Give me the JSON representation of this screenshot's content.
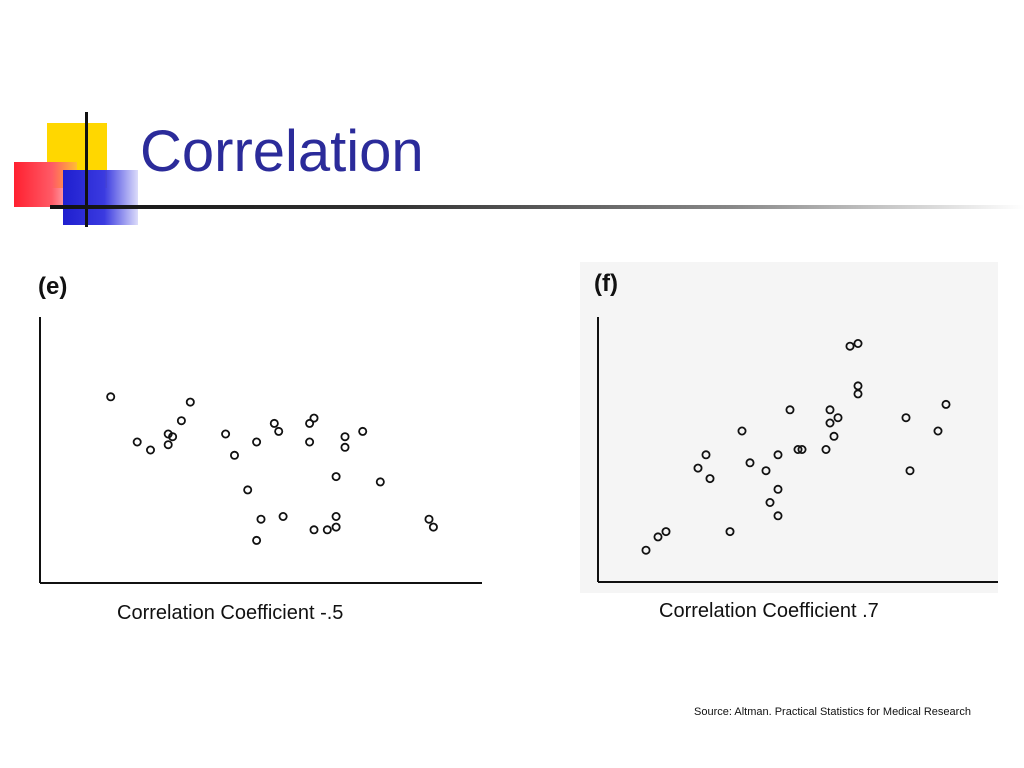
{
  "slide": {
    "title": "Correlation",
    "source": "Source: Altman. Practical Statistics for Medical Research",
    "colors": {
      "title": "#2b2b9a",
      "logo_yellow": "#ffd700",
      "logo_red": "#ff2030",
      "logo_blue": "#1f1fcf"
    }
  },
  "panels": [
    {
      "label": "(e)",
      "caption": "Correlation Coefficient -.5"
    },
    {
      "label": "(f)",
      "caption": "Correlation Coefficient .7"
    }
  ],
  "chart_data": [
    {
      "type": "scatter",
      "title": "",
      "xlabel": "",
      "ylabel": "",
      "xlim": [
        0,
        100
      ],
      "ylim": [
        0,
        100
      ],
      "grid": false,
      "correlation": -0.5,
      "points": [
        [
          16,
          70
        ],
        [
          22,
          53
        ],
        [
          25,
          50
        ],
        [
          29,
          52
        ],
        [
          30,
          55
        ],
        [
          32,
          61
        ],
        [
          34,
          68
        ],
        [
          42,
          56
        ],
        [
          44,
          48
        ],
        [
          47,
          35
        ],
        [
          49,
          16
        ],
        [
          49,
          53
        ],
        [
          50,
          24
        ],
        [
          53,
          60
        ],
        [
          54,
          57
        ],
        [
          55,
          25
        ],
        [
          61,
          53
        ],
        [
          61,
          60
        ],
        [
          62,
          20
        ],
        [
          62,
          62
        ],
        [
          65,
          20
        ],
        [
          67,
          40
        ],
        [
          67,
          25
        ],
        [
          67,
          21
        ],
        [
          69,
          55
        ],
        [
          69,
          51
        ],
        [
          73,
          57
        ],
        [
          77,
          38
        ],
        [
          88,
          24
        ],
        [
          89,
          21
        ],
        [
          29,
          56
        ]
      ]
    },
    {
      "type": "scatter",
      "title": "",
      "xlabel": "",
      "ylabel": "",
      "xlim": [
        0,
        100
      ],
      "ylim": [
        0,
        100
      ],
      "grid": false,
      "correlation": 0.7,
      "points": [
        [
          12,
          12
        ],
        [
          15,
          17
        ],
        [
          17,
          19
        ],
        [
          25,
          43
        ],
        [
          27,
          48
        ],
        [
          28,
          39
        ],
        [
          33,
          19
        ],
        [
          36,
          57
        ],
        [
          38,
          45
        ],
        [
          42,
          42
        ],
        [
          43,
          30
        ],
        [
          45,
          48
        ],
        [
          45,
          35
        ],
        [
          45,
          25
        ],
        [
          48,
          65
        ],
        [
          50,
          50
        ],
        [
          51,
          50
        ],
        [
          57,
          50
        ],
        [
          58,
          60
        ],
        [
          58,
          65
        ],
        [
          59,
          55
        ],
        [
          60,
          62
        ],
        [
          63,
          89
        ],
        [
          65,
          90
        ],
        [
          65,
          71
        ],
        [
          65,
          74
        ],
        [
          77,
          62
        ],
        [
          78,
          42
        ],
        [
          85,
          57
        ],
        [
          87,
          67
        ]
      ]
    }
  ]
}
